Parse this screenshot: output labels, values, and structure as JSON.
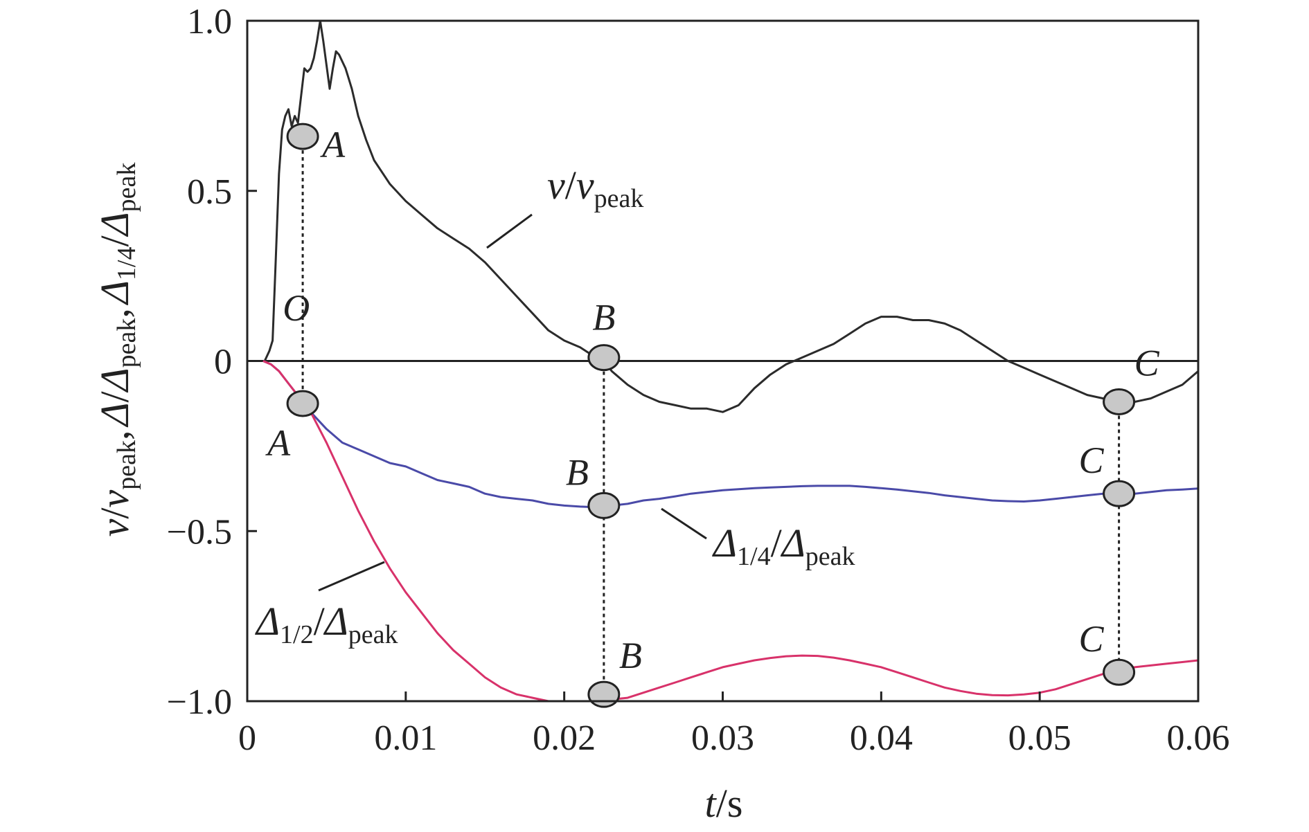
{
  "chart_data": {
    "type": "line",
    "xlabel": {
      "var": "t",
      "unit": "/s"
    },
    "ylabel": {
      "part1": {
        "var": "v",
        "sep": "/",
        "var2": "v",
        "sub": "peak",
        "comma": ","
      },
      "part2": {
        "var": "Δ",
        "sep": "/",
        "var2": "Δ",
        "sub": "peak",
        "comma": ","
      },
      "part3": {
        "var": "Δ",
        "sub1": "1/4",
        "sep": "/",
        "var2": "Δ",
        "sub": "peak"
      }
    },
    "xlim": [
      0,
      0.06
    ],
    "ylim": [
      -1.0,
      1.0
    ],
    "x_ticks": [
      {
        "value": 0,
        "label": "0"
      },
      {
        "value": 0.01,
        "label": "0.01"
      },
      {
        "value": 0.02,
        "label": "0.02"
      },
      {
        "value": 0.03,
        "label": "0.03"
      },
      {
        "value": 0.04,
        "label": "0.04"
      },
      {
        "value": 0.05,
        "label": "0.05"
      },
      {
        "value": 0.06,
        "label": "0.06"
      }
    ],
    "y_ticks": [
      {
        "value": 1.0,
        "label": "1.0"
      },
      {
        "value": 0.5,
        "label": "0.5"
      },
      {
        "value": 0,
        "label": "0"
      },
      {
        "value": -0.5,
        "label": "−0.5"
      },
      {
        "value": -1.0,
        "label": "−1.0"
      }
    ],
    "grid": false,
    "zero_line": true,
    "series": [
      {
        "name": "v/v_peak",
        "label": {
          "var": "v",
          "sep": "/",
          "var2": "v",
          "sub": "peak"
        },
        "color": "#2b2b2b",
        "x": [
          0.0011,
          0.0014,
          0.0016,
          0.0018,
          0.002,
          0.0022,
          0.0024,
          0.0026,
          0.0028,
          0.003,
          0.0032,
          0.0034,
          0.0036,
          0.0038,
          0.004,
          0.0042,
          0.0044,
          0.0046,
          0.0048,
          0.005,
          0.0052,
          0.0054,
          0.0056,
          0.0058,
          0.006,
          0.0062,
          0.0064,
          0.0066,
          0.007,
          0.0075,
          0.008,
          0.009,
          0.01,
          0.011,
          0.012,
          0.013,
          0.014,
          0.015,
          0.016,
          0.017,
          0.018,
          0.019,
          0.02,
          0.021,
          0.022,
          0.0225,
          0.023,
          0.024,
          0.025,
          0.026,
          0.027,
          0.028,
          0.029,
          0.03,
          0.031,
          0.032,
          0.033,
          0.034,
          0.035,
          0.036,
          0.037,
          0.038,
          0.039,
          0.04,
          0.041,
          0.042,
          0.043,
          0.044,
          0.045,
          0.046,
          0.047,
          0.048,
          0.049,
          0.05,
          0.051,
          0.052,
          0.053,
          0.054,
          0.055,
          0.056,
          0.057,
          0.058,
          0.059,
          0.06
        ],
        "y": [
          0.0,
          0.03,
          0.06,
          0.3,
          0.55,
          0.68,
          0.72,
          0.74,
          0.69,
          0.72,
          0.7,
          0.78,
          0.86,
          0.85,
          0.86,
          0.89,
          0.94,
          1.0,
          0.94,
          0.87,
          0.8,
          0.86,
          0.91,
          0.9,
          0.88,
          0.86,
          0.83,
          0.8,
          0.72,
          0.65,
          0.59,
          0.52,
          0.47,
          0.43,
          0.39,
          0.36,
          0.33,
          0.29,
          0.24,
          0.19,
          0.14,
          0.09,
          0.06,
          0.04,
          0.01,
          0.0,
          -0.03,
          -0.07,
          -0.1,
          -0.12,
          -0.13,
          -0.14,
          -0.14,
          -0.15,
          -0.13,
          -0.08,
          -0.04,
          -0.01,
          0.01,
          0.03,
          0.05,
          0.08,
          0.11,
          0.13,
          0.13,
          0.12,
          0.12,
          0.11,
          0.09,
          0.06,
          0.03,
          0.0,
          -0.02,
          -0.04,
          -0.06,
          -0.08,
          -0.1,
          -0.11,
          -0.12,
          -0.12,
          -0.11,
          -0.09,
          -0.07,
          -0.03
        ]
      },
      {
        "name": "Δ1/4/Δpeak",
        "label": {
          "var": "Δ",
          "sub1": "1/4",
          "sep": "/",
          "var2": "Δ",
          "sub": "peak"
        },
        "color": "#4a4aa8",
        "x": [
          0.001,
          0.0015,
          0.002,
          0.0025,
          0.003,
          0.0035,
          0.004,
          0.005,
          0.006,
          0.007,
          0.008,
          0.009,
          0.01,
          0.011,
          0.012,
          0.013,
          0.014,
          0.015,
          0.016,
          0.017,
          0.018,
          0.019,
          0.02,
          0.021,
          0.022,
          0.0225,
          0.023,
          0.024,
          0.025,
          0.026,
          0.027,
          0.028,
          0.029,
          0.03,
          0.031,
          0.032,
          0.033,
          0.034,
          0.035,
          0.036,
          0.037,
          0.038,
          0.039,
          0.04,
          0.041,
          0.042,
          0.043,
          0.044,
          0.045,
          0.046,
          0.047,
          0.048,
          0.049,
          0.05,
          0.051,
          0.052,
          0.053,
          0.054,
          0.055,
          0.056,
          0.057,
          0.058,
          0.059,
          0.06
        ],
        "y": [
          0.0,
          -0.01,
          -0.03,
          -0.06,
          -0.09,
          -0.12,
          -0.15,
          -0.2,
          -0.24,
          -0.26,
          -0.28,
          -0.3,
          -0.31,
          -0.33,
          -0.35,
          -0.36,
          -0.37,
          -0.39,
          -0.4,
          -0.405,
          -0.41,
          -0.42,
          -0.425,
          -0.428,
          -0.43,
          -0.425,
          -0.425,
          -0.42,
          -0.41,
          -0.405,
          -0.398,
          -0.39,
          -0.385,
          -0.38,
          -0.377,
          -0.374,
          -0.372,
          -0.37,
          -0.368,
          -0.367,
          -0.367,
          -0.367,
          -0.37,
          -0.374,
          -0.378,
          -0.383,
          -0.388,
          -0.395,
          -0.4,
          -0.405,
          -0.41,
          -0.412,
          -0.413,
          -0.41,
          -0.405,
          -0.4,
          -0.395,
          -0.39,
          -0.39,
          -0.39,
          -0.385,
          -0.38,
          -0.378,
          -0.375
        ]
      },
      {
        "name": "Δ1/2/Δpeak",
        "label": {
          "var": "Δ",
          "sub1": "1/2",
          "sep": "/",
          "var2": "Δ",
          "sub": "peak"
        },
        "color": "#d8326a",
        "x": [
          0.001,
          0.0015,
          0.002,
          0.0025,
          0.003,
          0.0035,
          0.004,
          0.005,
          0.006,
          0.007,
          0.008,
          0.009,
          0.01,
          0.011,
          0.012,
          0.013,
          0.014,
          0.015,
          0.016,
          0.017,
          0.018,
          0.019,
          0.02,
          0.021,
          0.022,
          0.0225,
          0.023,
          0.024,
          0.025,
          0.026,
          0.027,
          0.028,
          0.029,
          0.03,
          0.031,
          0.032,
          0.033,
          0.034,
          0.035,
          0.036,
          0.037,
          0.038,
          0.039,
          0.04,
          0.041,
          0.042,
          0.043,
          0.044,
          0.045,
          0.046,
          0.047,
          0.048,
          0.049,
          0.05,
          0.051,
          0.052,
          0.053,
          0.054,
          0.055,
          0.056,
          0.057,
          0.058,
          0.059,
          0.06
        ],
        "y": [
          0.0,
          -0.01,
          -0.03,
          -0.06,
          -0.09,
          -0.12,
          -0.15,
          -0.24,
          -0.34,
          -0.44,
          -0.53,
          -0.61,
          -0.68,
          -0.74,
          -0.8,
          -0.85,
          -0.89,
          -0.93,
          -0.96,
          -0.98,
          -0.99,
          -1.0,
          -1.0,
          -1.0,
          -1.0,
          -0.998,
          -0.995,
          -0.99,
          -0.975,
          -0.96,
          -0.945,
          -0.93,
          -0.915,
          -0.9,
          -0.89,
          -0.88,
          -0.873,
          -0.868,
          -0.866,
          -0.867,
          -0.872,
          -0.88,
          -0.89,
          -0.9,
          -0.915,
          -0.93,
          -0.945,
          -0.96,
          -0.97,
          -0.978,
          -0.982,
          -0.983,
          -0.98,
          -0.975,
          -0.965,
          -0.95,
          -0.935,
          -0.92,
          -0.91,
          -0.9,
          -0.895,
          -0.89,
          -0.885,
          -0.88
        ]
      }
    ],
    "markers": [
      {
        "x": 0.0035,
        "y": 0.66,
        "label": "A",
        "label_pos": "right"
      },
      {
        "x": 0.0035,
        "y": -0.125,
        "label": "A",
        "label_pos": "below-left"
      },
      {
        "x": 0.0225,
        "y": 0.01,
        "label": "B",
        "label_pos": "above"
      },
      {
        "x": 0.0225,
        "y": -0.425,
        "label": "B",
        "label_pos": "above-left"
      },
      {
        "x": 0.0225,
        "y": -0.98,
        "label": "B",
        "label_pos": "above-right"
      },
      {
        "x": 0.055,
        "y": -0.12,
        "label": "C",
        "label_pos": "above-right"
      },
      {
        "x": 0.055,
        "y": -0.39,
        "label": "C",
        "label_pos": "above-left"
      },
      {
        "x": 0.055,
        "y": -0.915,
        "label": "C",
        "label_pos": "above-left"
      }
    ],
    "origin_label": {
      "text": "O",
      "x": 0.002,
      "y": 0.17
    },
    "dashed_guides": [
      {
        "x": 0.0035,
        "y_from": 0.66,
        "y_to": -0.125
      },
      {
        "x": 0.0225,
        "y_from": 0.01,
        "y_to": -0.98
      },
      {
        "x": 0.055,
        "y_from": -0.12,
        "y_to": -0.915
      }
    ],
    "marker_fill": "#c8c8c8"
  }
}
